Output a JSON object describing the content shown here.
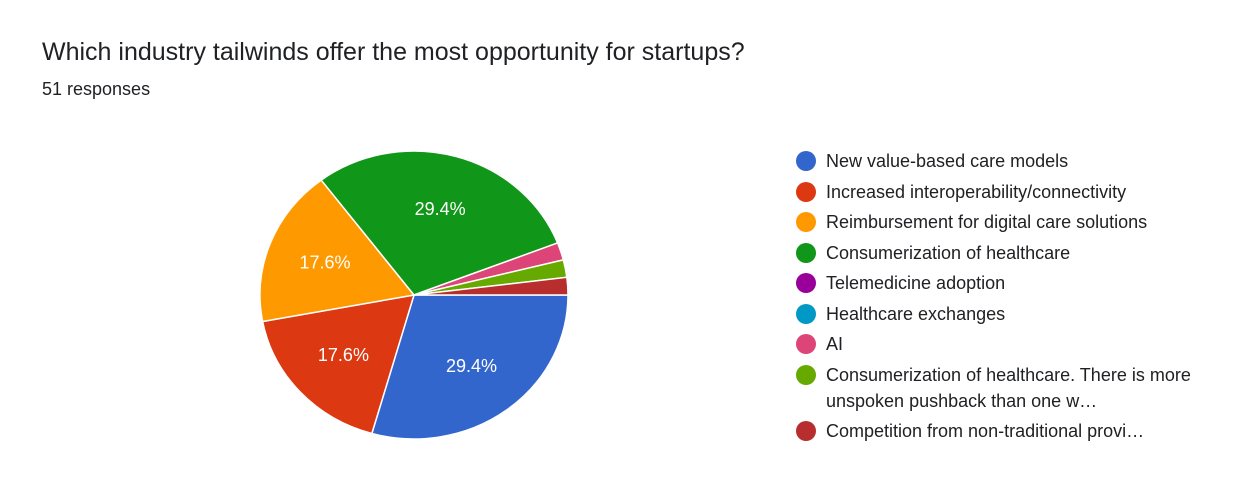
{
  "header": {
    "title": "Which industry tailwinds offer the most opportunity for startups?",
    "responses": "51 responses"
  },
  "chart_data": {
    "type": "pie",
    "categories": [
      "New value-based care models",
      "Increased interoperability/connectivity",
      "Reimbursement for digital care solutions",
      "Consumerization of healthcare",
      "Telemedicine adoption",
      "Healthcare exchanges",
      "AI",
      "Consumerization of healthcare. There is more unspoken pushback than one w…",
      "Competition from non-traditional provi…"
    ],
    "values": [
      15,
      9,
      9,
      15,
      0,
      0,
      1,
      1,
      1
    ],
    "percent_labels": [
      "29.4%",
      "17.6%",
      "17.6%",
      "29.4%",
      "",
      "",
      "",
      "",
      ""
    ],
    "colors": [
      "#3366cc",
      "#dc3912",
      "#ff9900",
      "#109618",
      "#990099",
      "#0099c6",
      "#dd4477",
      "#66aa00",
      "#b82e2e"
    ],
    "total": 51,
    "legend_position": "right"
  }
}
